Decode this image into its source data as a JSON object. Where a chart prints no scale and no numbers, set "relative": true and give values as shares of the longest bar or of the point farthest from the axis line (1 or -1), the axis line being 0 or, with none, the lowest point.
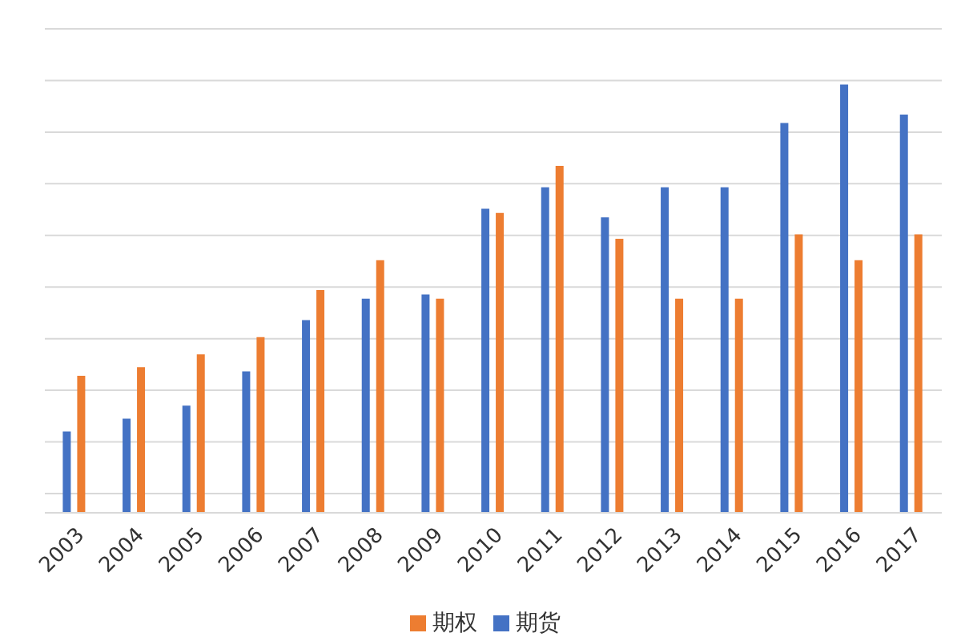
{
  "chart_data": {
    "type": "bar",
    "relative": true,
    "categories": [
      "2003",
      "2004",
      "2005",
      "2006",
      "2007",
      "2008",
      "2009",
      "2010",
      "2011",
      "2012",
      "2013",
      "2014",
      "2015",
      "2016",
      "2017"
    ],
    "series": [
      {
        "name": "期货",
        "color": "#4472c4",
        "values": [
          0.19,
          0.22,
          0.25,
          0.33,
          0.45,
          0.5,
          0.51,
          0.71,
          0.76,
          0.69,
          0.76,
          0.76,
          0.91,
          1,
          0.93
        ]
      },
      {
        "name": "期权",
        "color": "#ed7d31",
        "values": [
          0.32,
          0.34,
          0.37,
          0.41,
          0.52,
          0.59,
          0.5,
          0.7,
          0.81,
          0.64,
          0.5,
          0.5,
          0.65,
          0.59,
          0.65
        ]
      }
    ],
    "grid": "y",
    "legend": "bottom"
  }
}
